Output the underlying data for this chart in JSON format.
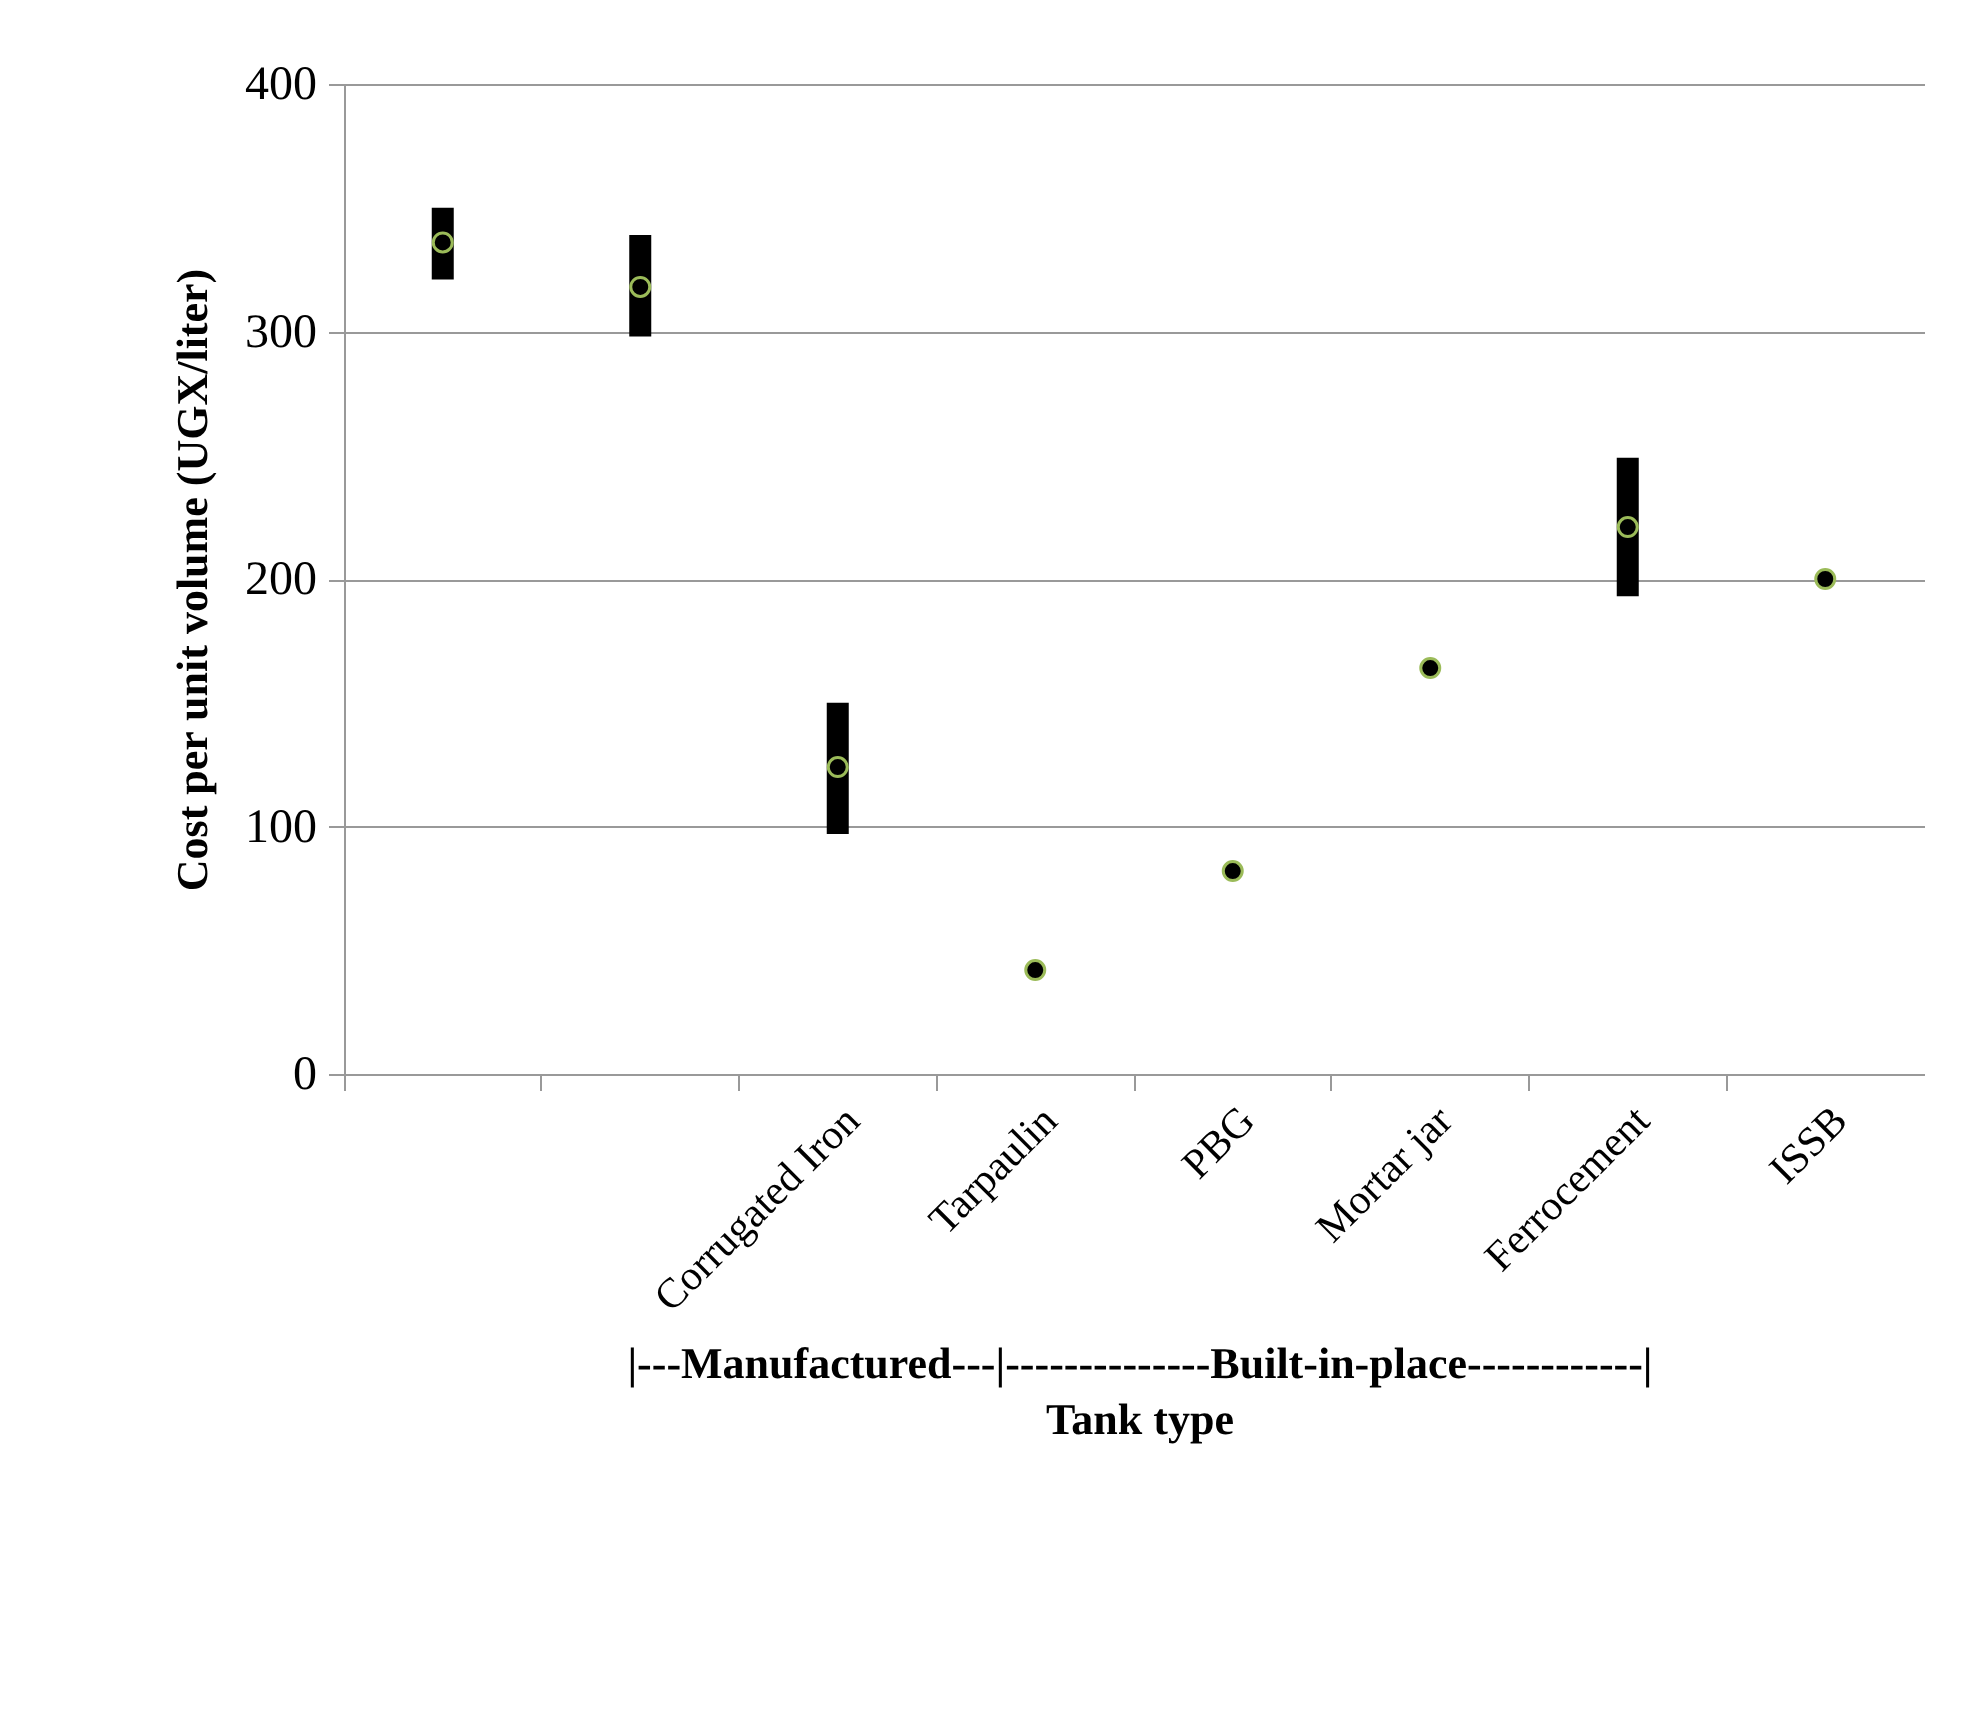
{
  "chart_data": {
    "type": "scatter",
    "ylabel": "Cost per unit volume (UGX/liter)",
    "xlabel": "Tank type",
    "annotations": [
      "|---Manufactured---|--------------Built-in-place------------|"
    ],
    "categories": [
      null,
      null,
      "Corrugated Iron",
      "Tarpaulin",
      "PBG",
      "Mortar jar",
      "Ferrocement",
      "ISSB"
    ],
    "series": [
      {
        "color": "#000000",
        "values": [
          336,
          318,
          124,
          42,
          82,
          164,
          221,
          200
        ],
        "errors": [
          [
            321,
            350
          ],
          [
            298,
            339
          ],
          [
            97,
            150
          ],
          null,
          null,
          null,
          [
            193,
            249
          ],
          null
        ]
      }
    ],
    "ylim": [
      0,
      400
    ],
    "yticks": [
      0,
      100,
      200,
      300,
      400
    ],
    "grid": "y",
    "marker": "circle"
  }
}
